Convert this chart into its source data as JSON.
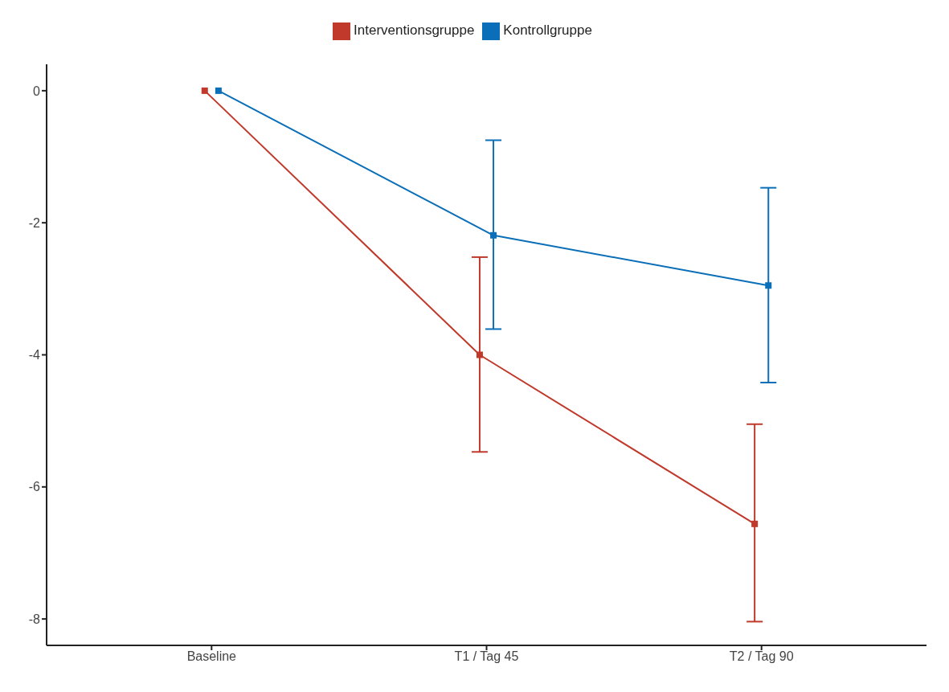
{
  "chart_data": {
    "type": "line",
    "categories": [
      "Baseline",
      "T1 / Tag 45",
      "T2 / Tag 90"
    ],
    "series": [
      {
        "name": "Interventionsgruppe",
        "color": "#c0392b",
        "values": [
          0,
          -4.0,
          -6.56
        ],
        "errors": [
          null,
          [
            -5.47,
            -2.52
          ],
          [
            -8.04,
            -5.05
          ]
        ]
      },
      {
        "name": "Kontrollgruppe",
        "color": "#0a6fb8",
        "values": [
          0,
          -2.19,
          -2.95
        ],
        "errors": [
          null,
          [
            -3.61,
            -0.75
          ],
          [
            -4.42,
            -1.47
          ]
        ]
      }
    ],
    "ylim": [
      -8.4,
      0.4
    ],
    "yticks": [
      0,
      -2,
      -4,
      -6,
      -8
    ],
    "grid": false,
    "legend": "top",
    "marker": "square",
    "line_style": "solid"
  }
}
